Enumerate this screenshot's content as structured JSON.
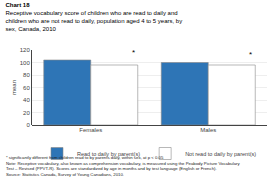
{
  "chart_data": {
    "type": "bar",
    "title": "Chart 18",
    "subtitle": [
      "Receptive vocabulary score of children who are read to daily and",
      "children who are not read to daily, population aged 4 to 5 years, by",
      "sex, Canada, 2010"
    ],
    "ylabel": "mean",
    "categories": [
      "Females",
      "Males"
    ],
    "series": [
      {
        "name": "Read to daily by parent(s)",
        "color": "#2E75B6",
        "values": [
          104,
          100
        ]
      },
      {
        "name": "Not read to daily by parent(s)",
        "color": "#FFFFFF",
        "values": [
          96,
          96
        ]
      }
    ],
    "ylim": [
      0,
      120
    ],
    "yticks": [
      0,
      20,
      40,
      60,
      80,
      100,
      120
    ],
    "grid": true,
    "legend": "bottom",
    "annotations": [
      {
        "text": "*",
        "x": "Females",
        "y": 106
      },
      {
        "text": "*",
        "x": "Males",
        "y": 102
      }
    ],
    "notes": [
      "* significantly different from children read to by parents daily, within sex, at p < 0.05",
      "Note: Receptive vocabulary, also known as comprehension vocabulary, is measured using the Peabody Picture Vocabulary",
      "Test – Revised (PPVT-R). Scores are standardized by age in months and by test language (English or French).",
      "Source: Statistics Canada, Survey of Young Canadians, 2010."
    ]
  }
}
